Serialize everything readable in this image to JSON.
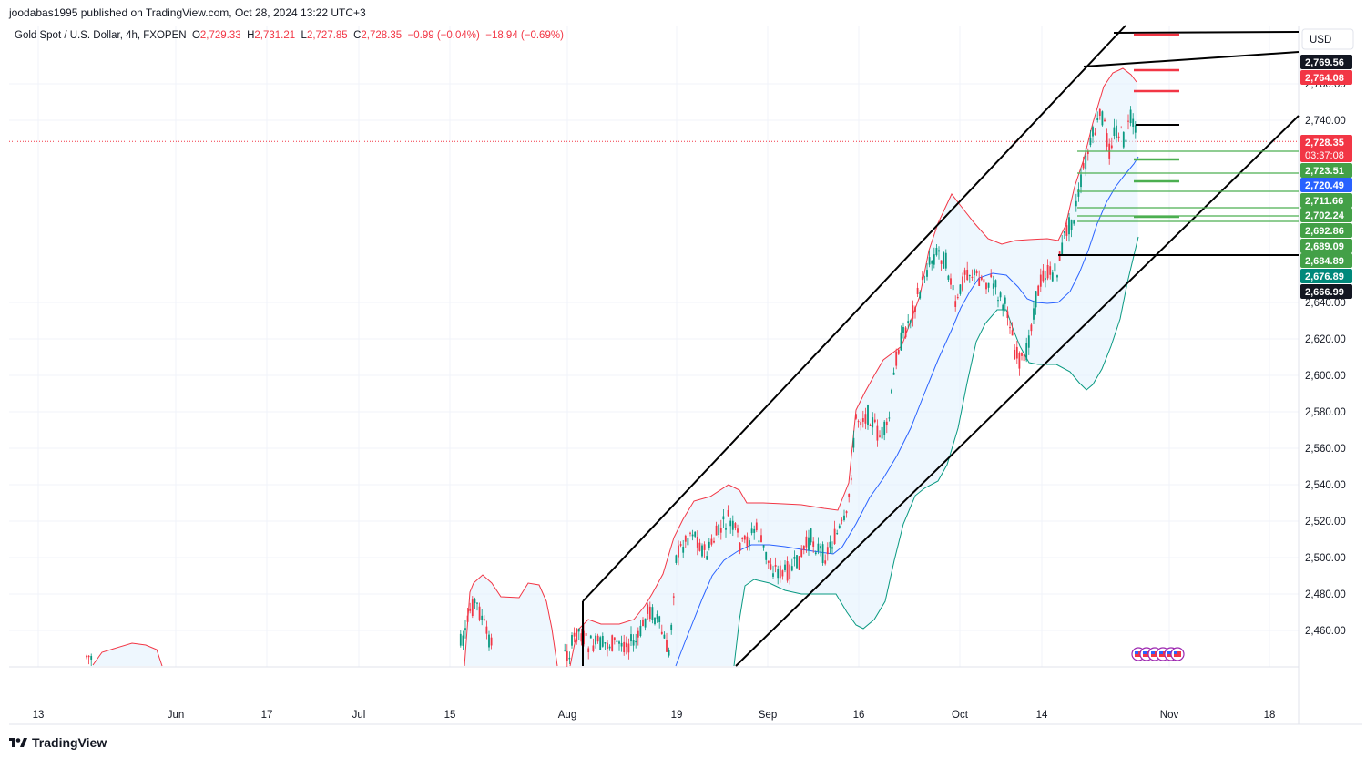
{
  "header": {
    "published_by": "joodabas1995 published on TradingView.com, Oct 28, 2024 13:22 UTC+3"
  },
  "legend": {
    "symbol": "Gold Spot / U.S. Dollar, 4h, FXOPEN",
    "open_label": "O",
    "open": "2,729.33",
    "high_label": "H",
    "high": "2,731.21",
    "low_label": "L",
    "low": "2,727.85",
    "close_label": "C",
    "close": "2,728.35",
    "change": "−0.99 (−0.04%)",
    "change2": "−18.94 (−0.69%)"
  },
  "footer": {
    "brand": "TradingView"
  },
  "colors": {
    "up": "#089981",
    "down": "#f23645",
    "channel": "#000000",
    "bb_upper": "#f23645",
    "bb_lower": "#089981",
    "bb_mid": "#2962ff",
    "bb_fill": "#e3f2fd",
    "level_green": "#4caf50",
    "level_red": "#f23645"
  },
  "chart_data": {
    "type": "candlestick",
    "currency": "USD",
    "y_axis_ticks": [
      "2,460.00",
      "2,480.00",
      "2,500.00",
      "2,520.00",
      "2,540.00",
      "2,560.00",
      "2,580.00",
      "2,600.00",
      "2,620.00",
      "2,640.00",
      "2,740.00",
      "2,760.00"
    ],
    "x_axis_ticks": [
      "13",
      "Jun",
      "17",
      "Jul",
      "15",
      "Aug",
      "19",
      "Sep",
      "16",
      "Oct",
      "14",
      "Nov",
      "18"
    ],
    "ylim": [
      2448,
      2790
    ],
    "price_labels": [
      {
        "text": "2,769.56",
        "bg": "#131722",
        "fg": "#ffffff",
        "value": 2769.56
      },
      {
        "text": "2,764.08",
        "bg": "#f23645",
        "fg": "#ffffff",
        "value": 2764.08
      },
      {
        "text": "2,728.35",
        "bg": "#f23645",
        "fg": "#ffffff",
        "value": 2728.35,
        "sub": "03:37:08"
      },
      {
        "text": "2,723.51",
        "bg": "#43a047",
        "fg": "#ffffff",
        "value": 2723.51
      },
      {
        "text": "2,720.49",
        "bg": "#2962ff",
        "fg": "#ffffff",
        "value": 2720.49
      },
      {
        "text": "2,711.66",
        "bg": "#43a047",
        "fg": "#ffffff",
        "value": 2711.66
      },
      {
        "text": "2,702.24",
        "bg": "#43a047",
        "fg": "#ffffff",
        "value": 2702.24
      },
      {
        "text": "2,692.86",
        "bg": "#43a047",
        "fg": "#ffffff",
        "value": 2692.86
      },
      {
        "text": "2,689.09",
        "bg": "#43a047",
        "fg": "#ffffff",
        "value": 2689.09
      },
      {
        "text": "2,684.89",
        "bg": "#43a047",
        "fg": "#ffffff",
        "value": 2684.89
      },
      {
        "text": "2,676.89",
        "bg": "#00897b",
        "fg": "#ffffff",
        "value": 2676.89
      },
      {
        "text": "2,666.99",
        "bg": "#131722",
        "fg": "#ffffff",
        "value": 2666.99
      }
    ],
    "last_price": 2728.35,
    "bollinger_bands": true,
    "channel_lines": 3,
    "green_levels": [
      2723.51,
      2711.66,
      2702.24,
      2692.86,
      2689.09,
      2684.89
    ],
    "black_levels": [
      2769.56,
      2764.08,
      2666.99
    ]
  }
}
